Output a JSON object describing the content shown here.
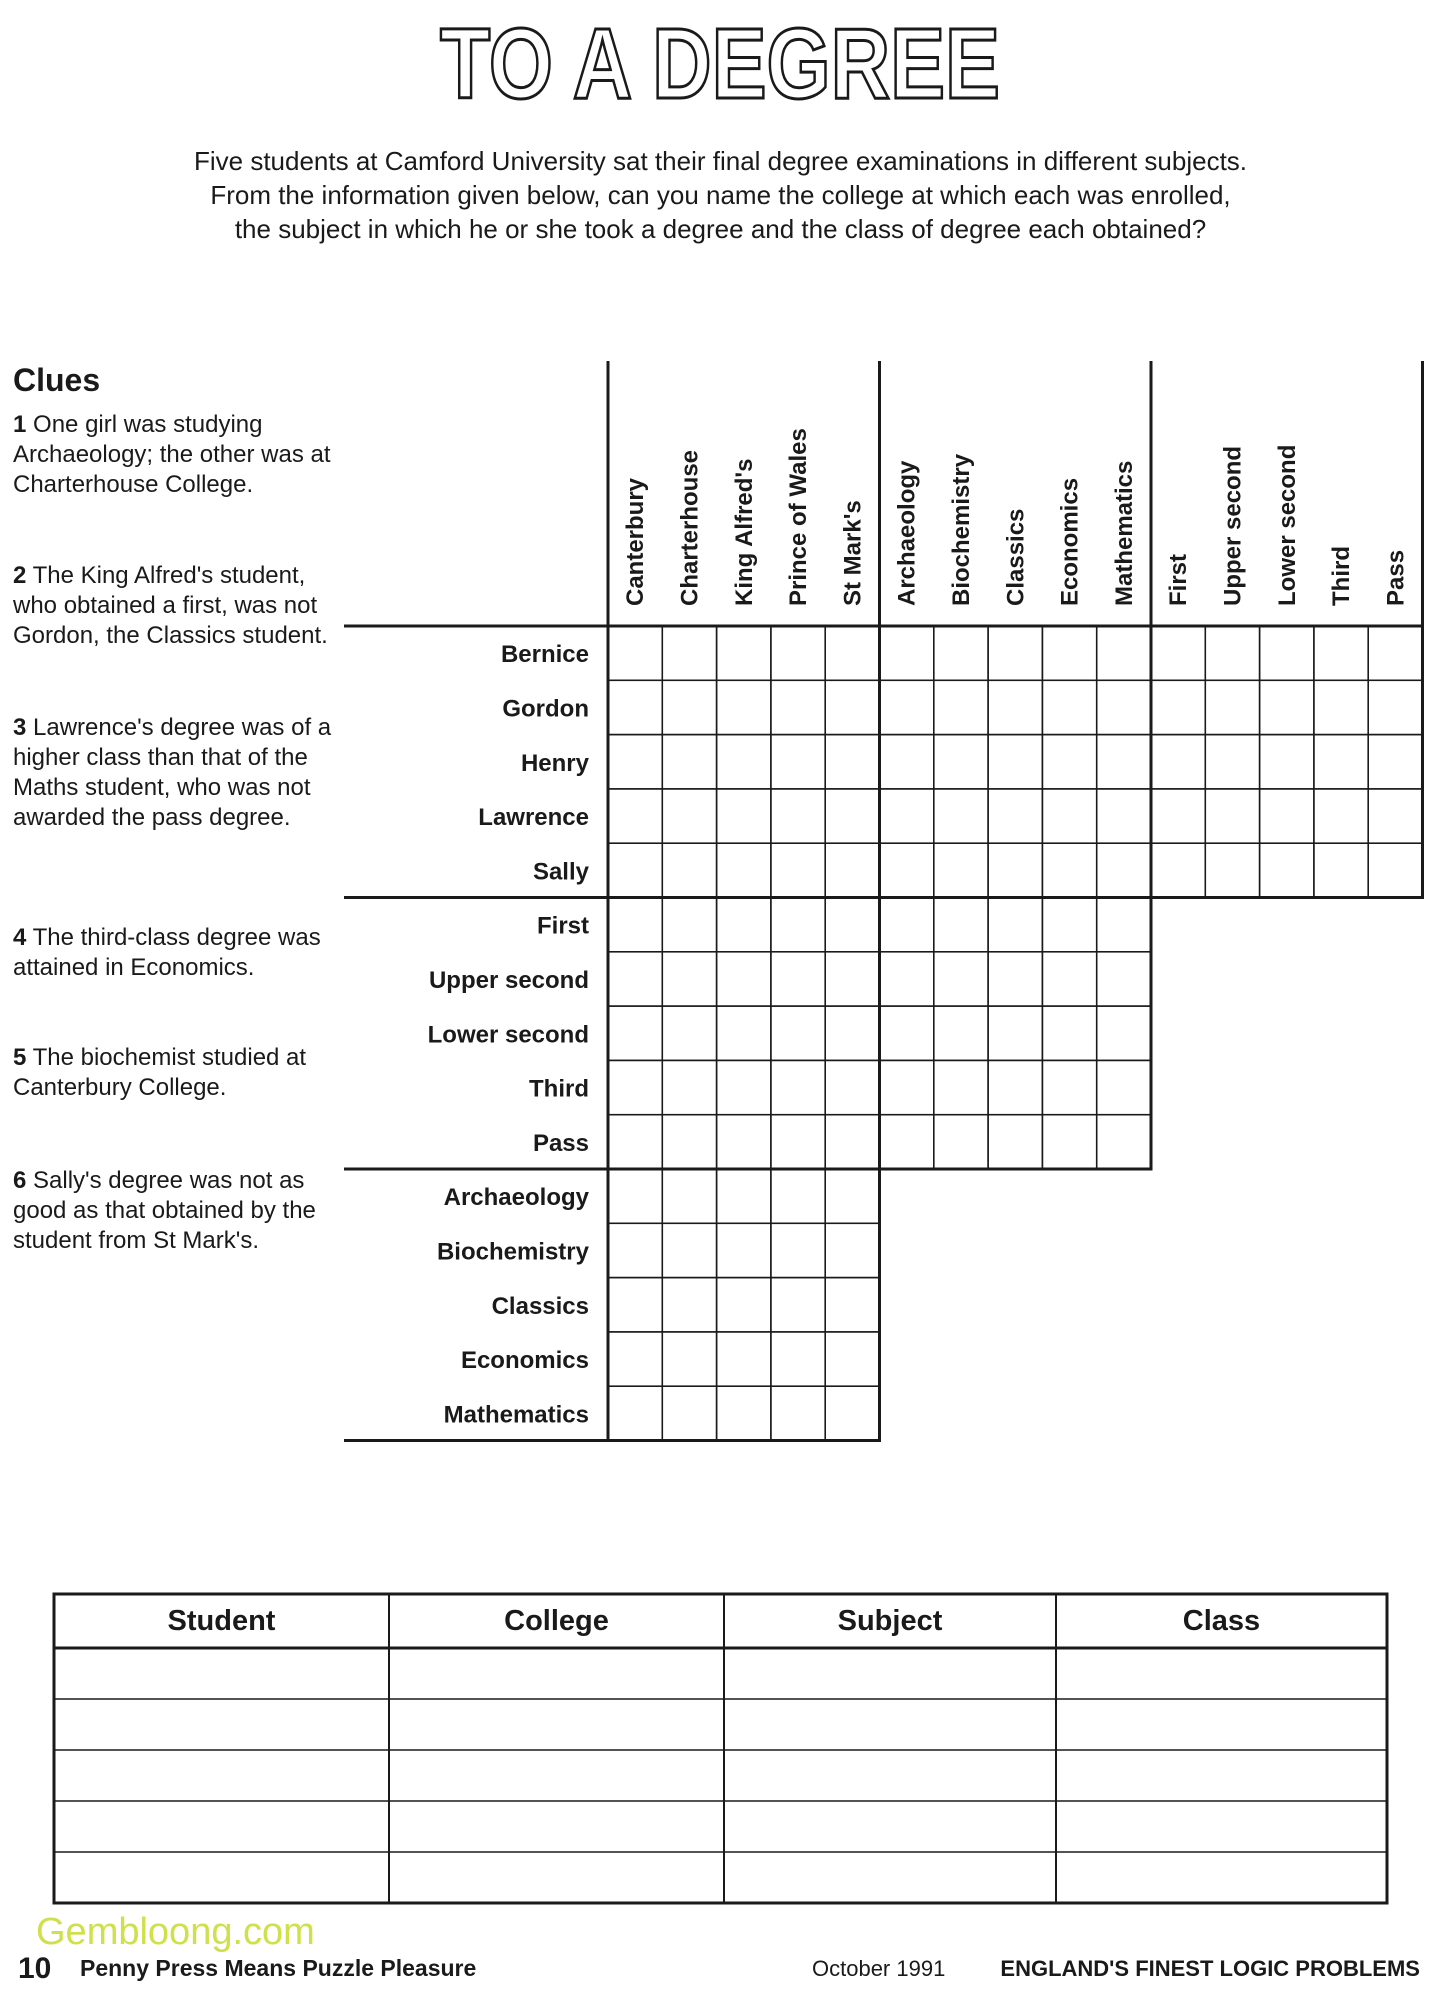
{
  "title": "TO A DEGREE",
  "intro": [
    "Five students at Camford University sat their final degree examinations in different subjects.",
    "From the information given below, can you name the college at which each was enrolled,",
    "the subject in which he or she took a degree and the class of degree each obtained?"
  ],
  "clues": {
    "heading": "Clues",
    "items": [
      {
        "number": "1",
        "text": "One girl was studying Archaeology; the other was at Charterhouse College."
      },
      {
        "number": "2",
        "text": "The King Alfred's student, who obtained a first, was not Gordon, the Classics student."
      },
      {
        "number": "3",
        "text": "Lawrence's degree was of a higher class than that of the Maths student, who was not awarded the pass degree."
      },
      {
        "number": "4",
        "text": "The third-class degree was attained in Economics."
      },
      {
        "number": "5",
        "text": "The biochemist studied at Canterbury College."
      },
      {
        "number": "6",
        "text": "Sally's degree was not as good as that obtained by the student from St Mark's."
      }
    ]
  },
  "grid": {
    "columns": {
      "colleges": [
        "Canterbury",
        "Charterhouse",
        "King Alfred's",
        "Prince of Wales",
        "St Mark's"
      ],
      "subjects": [
        "Archaeology",
        "Biochemistry",
        "Classics",
        "Economics",
        "Mathematics"
      ],
      "classes": [
        "First",
        "Upper second",
        "Lower second",
        "Third",
        "Pass"
      ]
    },
    "rows": {
      "students": [
        "Bernice",
        "Gordon",
        "Henry",
        "Lawrence",
        "Sally"
      ],
      "classes": [
        "First",
        "Upper second",
        "Lower second",
        "Third",
        "Pass"
      ],
      "subjects": [
        "Archaeology",
        "Biochemistry",
        "Classics",
        "Economics",
        "Mathematics"
      ]
    }
  },
  "answer_table": {
    "headers": [
      "Student",
      "College",
      "Subject",
      "Class"
    ]
  },
  "footer": {
    "page": "10",
    "left": "Penny Press Means Puzzle Pleasure",
    "date": "October 1991",
    "right": "ENGLAND'S FINEST LOGIC PROBLEMS"
  },
  "watermark": "Gembloong.com"
}
